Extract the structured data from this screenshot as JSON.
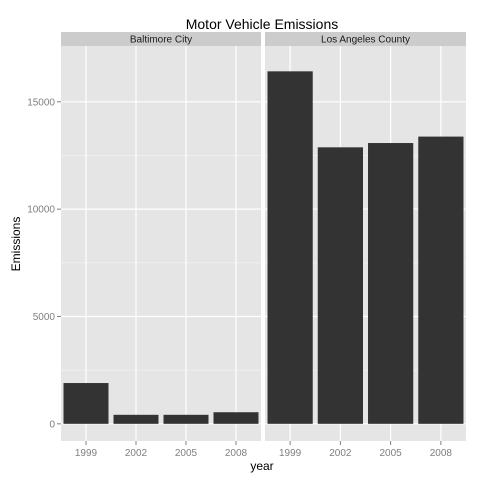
{
  "chart_data": {
    "type": "bar",
    "title": "Motor Vehicle Emissions",
    "xlabel": "year",
    "ylabel": "Emissions",
    "ylim": [
      -800,
      17600
    ],
    "yticks": [
      0,
      5000,
      10000,
      15000
    ],
    "y_tick_labels": [
      "0",
      "5000",
      "10000",
      "15000"
    ],
    "categories": [
      "1999",
      "2002",
      "2005",
      "2008"
    ],
    "grid": true,
    "facet_by": "county",
    "colors": {
      "bar": "#333333",
      "panel_background": "#e5e5e5",
      "strip_background": "#cccccc",
      "grid_major": "#ffffff",
      "grid_minor": "#f2f2f2"
    },
    "panels": [
      {
        "name": "Baltimore City",
        "values": [
          1900,
          420,
          420,
          540
        ]
      },
      {
        "name": "Los Angeles County",
        "values": [
          16420,
          12880,
          13080,
          13380
        ]
      }
    ]
  }
}
